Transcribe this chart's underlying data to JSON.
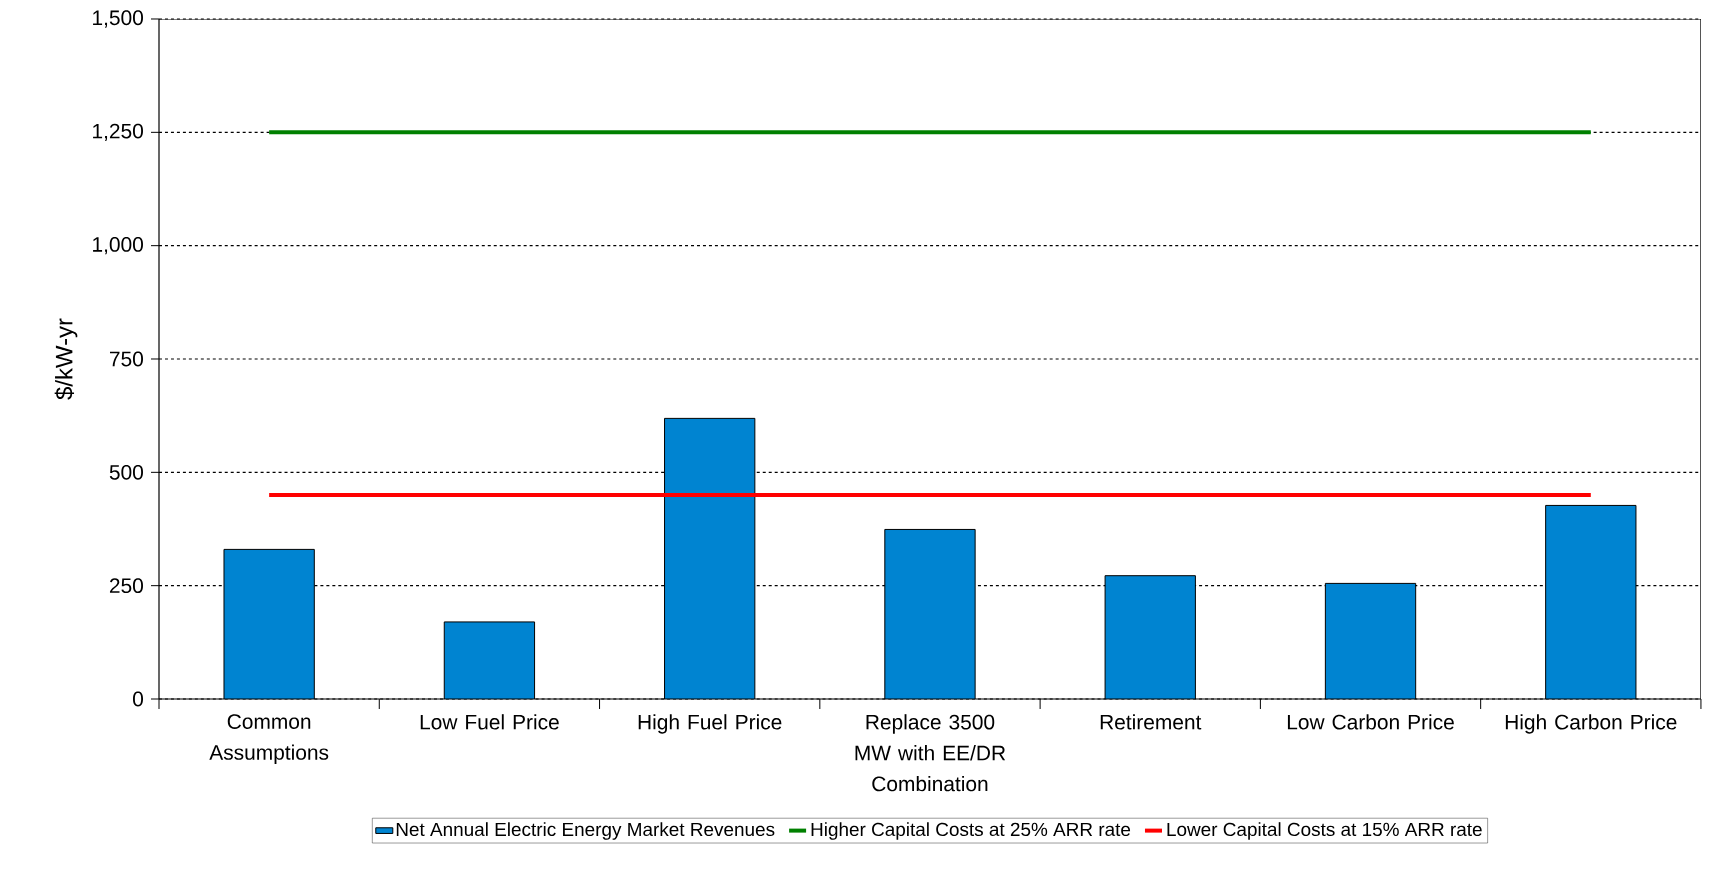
{
  "chart_data": {
    "type": "bar",
    "ylabel": "$/kW-yr",
    "categories": [
      "Common Assumptions",
      "Low Fuel Price",
      "High Fuel Price",
      "Replace 3500 MW with EE/DR Combination",
      "Retirement",
      "Low Carbon Price",
      "High Carbon Price"
    ],
    "series": [
      {
        "name": "Net Annual Electric Energy Market Revenues",
        "color": "#0084d1",
        "values": [
          330,
          170,
          619,
          374,
          272,
          255,
          427
        ]
      },
      {
        "name": "Higher Capital Costs at 25% ARR rate",
        "type": "line",
        "color": "#008000",
        "values": [
          1250,
          1250,
          1250,
          1250,
          1250,
          1250,
          1250
        ]
      },
      {
        "name": "Lower Capital Costs at 15% ARR rate",
        "type": "line",
        "color": "#ff0000",
        "values": [
          450,
          450,
          450,
          450,
          450,
          450,
          450
        ]
      }
    ],
    "ylim": [
      0,
      1500
    ],
    "yticks": [
      0,
      250,
      500,
      750,
      {
        "value": 1000,
        "label": "1,000"
      },
      {
        "value": 1250,
        "label": "1,250"
      },
      {
        "value": 1500,
        "label": "1,500"
      }
    ],
    "grid": "y",
    "legend": "bottom"
  }
}
